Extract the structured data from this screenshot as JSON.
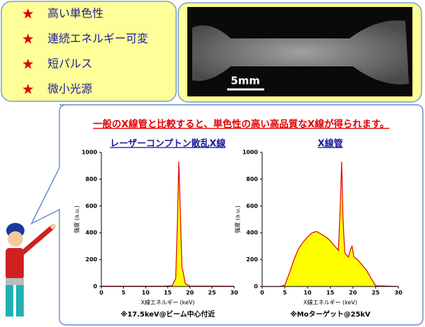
{
  "bullets": [
    "高い単色性",
    "連続エネルギー可変",
    "短パルス",
    "微小光源"
  ],
  "scale_label": "5mm",
  "headline": "一般のX線管と比較すると、単色性の高い高品質なX線が得られます。",
  "chart_data": [
    {
      "type": "area",
      "title": "レーザーコンプトン散乱X線",
      "x_label": "X線エネルギー (keV)",
      "y_label": "強度 (a.u.)",
      "note": "※17.5keV@ビーム中心付近",
      "color": "#ffff00",
      "line_color": "#e00000",
      "x": [
        0,
        14,
        16,
        16.8,
        17.2,
        17.5,
        17.8,
        18.2,
        19,
        20,
        30
      ],
      "values": [
        2,
        2,
        5,
        60,
        500,
        930,
        600,
        150,
        20,
        3,
        2
      ],
      "xlim": [
        0,
        30
      ],
      "ylim": [
        0,
        1000
      ],
      "xticks": [
        0,
        5,
        10,
        15,
        20,
        25,
        30
      ],
      "yticks": [
        0,
        200,
        400,
        600,
        800,
        1000
      ]
    },
    {
      "type": "area",
      "title": "X線管",
      "x_label": "X線エネルギー (keV)",
      "y_label": "強度 (a.u.)",
      "note": "※Moターゲット@25kV",
      "color": "#ffff00",
      "line_color": "#e00000",
      "x": [
        0,
        4,
        5,
        6,
        7,
        8,
        9,
        10,
        11,
        12,
        13,
        14,
        15,
        16,
        16.8,
        17.2,
        17.5,
        17.8,
        18.2,
        19,
        19.5,
        19.8,
        20.2,
        21,
        22,
        23,
        24,
        25,
        30
      ],
      "values": [
        0,
        0,
        10,
        100,
        200,
        280,
        330,
        370,
        400,
        410,
        390,
        370,
        340,
        300,
        270,
        600,
        930,
        500,
        250,
        220,
        280,
        300,
        220,
        200,
        160,
        120,
        60,
        5,
        0
      ],
      "xlim": [
        0,
        30
      ],
      "ylim": [
        0,
        1000
      ],
      "xticks": [
        0,
        5,
        10,
        15,
        20,
        25,
        30
      ],
      "yticks": [
        0,
        200,
        400,
        600,
        800,
        1000
      ]
    }
  ]
}
